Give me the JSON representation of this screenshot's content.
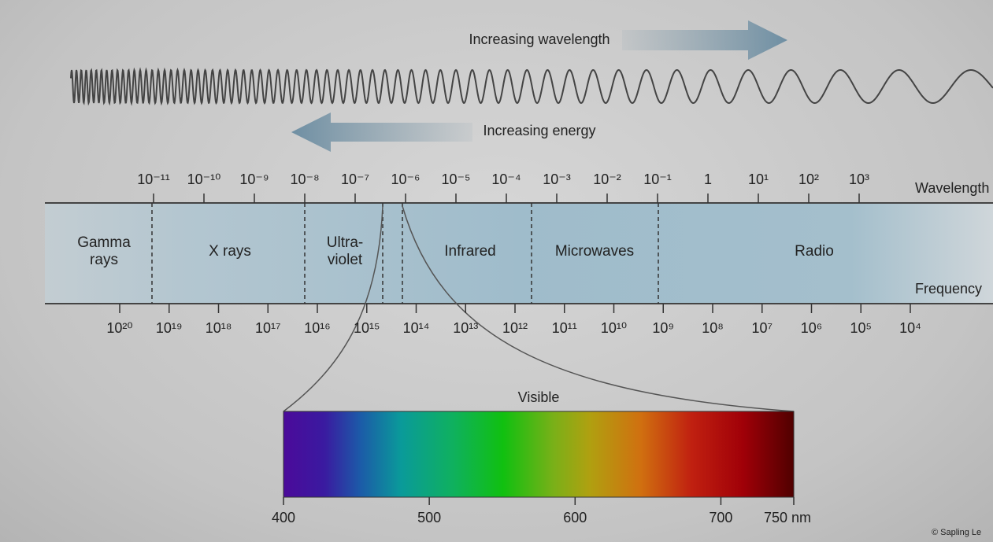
{
  "header": {
    "wavelength_arrow": "Increasing wavelength",
    "energy_arrow": "Increasing energy"
  },
  "wavelength": {
    "title": "Wavelength",
    "ticks": [
      "10⁻¹¹",
      "10⁻¹⁰",
      "10⁻⁹",
      "10⁻⁸",
      "10⁻⁷",
      "10⁻⁶",
      "10⁻⁵",
      "10⁻⁴",
      "10⁻³",
      "10⁻²",
      "10⁻¹",
      "1",
      "10¹",
      "10²",
      "10³"
    ]
  },
  "frequency": {
    "title": "Frequency",
    "ticks": [
      "10²⁰",
      "10¹⁹",
      "10¹⁸",
      "10¹⁷",
      "10¹⁶",
      "10¹⁵",
      "10¹⁴",
      "10¹³",
      "10¹²",
      "10¹¹",
      "10¹⁰",
      "10⁹",
      "10⁸",
      "10⁷",
      "10⁶",
      "10⁵",
      "10⁴"
    ]
  },
  "bands": [
    "Gamma rays",
    "X rays",
    "Ultra-violet",
    "Infrared",
    "Microwaves",
    "Radio"
  ],
  "visible": {
    "title": "Visible",
    "ticks": [
      400,
      500,
      600,
      700,
      {
        "value": 750,
        "label": "750 nm"
      }
    ]
  },
  "credit": "© Sapling Le"
}
